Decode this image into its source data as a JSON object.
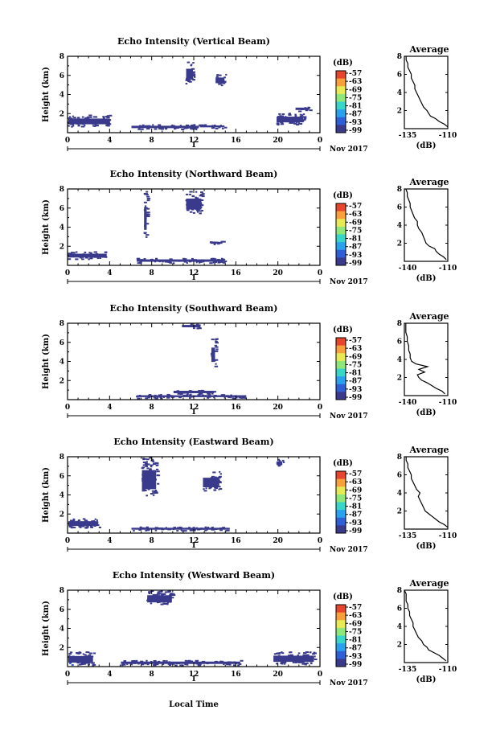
{
  "figure": {
    "xlabel": "Local Time",
    "date_label": "Nov 2017",
    "day_label": "1",
    "x_ticks": [
      "0",
      "4",
      "8",
      "12",
      "16",
      "20",
      "0"
    ],
    "y_ticks": [
      "2",
      "4",
      "6",
      "8"
    ],
    "colorbar_unit": "(dB)",
    "colorbar_ticks": [
      "-57",
      "-63",
      "-69",
      "-75",
      "-81",
      "-87",
      "-93",
      "-99"
    ],
    "colorbar_colors": [
      "#3a3a8c",
      "#2f5fd6",
      "#2aa1ee",
      "#37d6c8",
      "#8fe77a",
      "#e8ea55",
      "#f7a03c",
      "#e8452f"
    ]
  },
  "chart_data": [
    {
      "type": "heatmap",
      "title": "Echo Intensity (Vertical Beam)",
      "ylabel": "Height (km)",
      "xlim": [
        0,
        24
      ],
      "ylim": [
        0,
        8
      ],
      "echo_regions": [
        {
          "x": [
            0.0,
            4.1
          ],
          "y": [
            0.7,
            1.9
          ],
          "level_dB": -99
        },
        {
          "x": [
            6.0,
            12.5
          ],
          "y": [
            0.4,
            0.9
          ],
          "level_dB": -99
        },
        {
          "x": [
            12.5,
            15.0
          ],
          "y": [
            0.5,
            0.9
          ],
          "level_dB": -99
        },
        {
          "x": [
            11.2,
            12.0
          ],
          "y": [
            5.2,
            7.5
          ],
          "level_dB": -99
        },
        {
          "x": [
            14.0,
            15.0
          ],
          "y": [
            5.0,
            6.2
          ],
          "level_dB": -99
        },
        {
          "x": [
            19.8,
            22.5
          ],
          "y": [
            0.9,
            2.1
          ],
          "level_dB": -99
        },
        {
          "x": [
            21.6,
            23.0
          ],
          "y": [
            2.3,
            2.8
          ],
          "level_dB": -99
        }
      ],
      "profile": {
        "title": "Average",
        "xlabel": "(dB)",
        "xlim": [
          -135,
          -110
        ],
        "x_ticks": [
          "-135",
          "-110"
        ],
        "ylim": [
          0,
          8
        ],
        "height_km": [
          0.2,
          0.5,
          0.8,
          1.1,
          1.4,
          1.7,
          2.0,
          2.4,
          2.8,
          3.2,
          3.6,
          4.0,
          4.4,
          4.8,
          5.2,
          5.6,
          6.0,
          6.4,
          6.8,
          7.2,
          7.6,
          8.0
        ],
        "dB": [
          -110,
          -112,
          -115,
          -117,
          -120,
          -121,
          -122,
          -124,
          -125,
          -126,
          -127,
          -128,
          -129,
          -129,
          -130,
          -131,
          -131,
          -132,
          -133,
          -133,
          -134,
          -134
        ]
      }
    },
    {
      "type": "heatmap",
      "title": "Echo Intensity (Northward Beam)",
      "ylabel": "Height (km)",
      "xlim": [
        0,
        24
      ],
      "ylim": [
        0,
        8
      ],
      "echo_regions": [
        {
          "x": [
            0.0,
            3.8
          ],
          "y": [
            0.7,
            1.5
          ],
          "level_dB": -99
        },
        {
          "x": [
            6.5,
            15.0
          ],
          "y": [
            0.3,
            0.8
          ],
          "level_dB": -99
        },
        {
          "x": [
            7.2,
            7.6
          ],
          "y": [
            3.0,
            7.8
          ],
          "level_dB": -99
        },
        {
          "x": [
            11.2,
            12.8
          ],
          "y": [
            5.5,
            7.8
          ],
          "level_dB": -99
        },
        {
          "x": [
            13.5,
            14.8
          ],
          "y": [
            2.2,
            2.6
          ],
          "level_dB": -99
        }
      ],
      "profile": {
        "title": "Average",
        "xlabel": "(dB)",
        "xlim": [
          -140,
          -110
        ],
        "x_ticks": [
          "-140",
          "-110"
        ],
        "ylim": [
          0,
          8
        ],
        "height_km": [
          0.2,
          0.5,
          0.8,
          1.1,
          1.4,
          1.7,
          2.0,
          2.4,
          2.8,
          3.2,
          3.6,
          4.0,
          4.4,
          4.8,
          5.2,
          5.6,
          6.0,
          6.4,
          6.8,
          7.2,
          7.6,
          8.0
        ],
        "dB": [
          -111,
          -113,
          -116,
          -118,
          -119,
          -123,
          -125,
          -126,
          -127,
          -128,
          -130,
          -131,
          -131,
          -133,
          -134,
          -135,
          -136,
          -136,
          -137,
          -138,
          -138,
          -139
        ]
      }
    },
    {
      "type": "heatmap",
      "title": "Echo Intensity (Southward Beam)",
      "ylabel": "Height (km)",
      "xlim": [
        0,
        24
      ],
      "ylim": [
        0,
        8
      ],
      "echo_regions": [
        {
          "x": [
            6.5,
            17.0
          ],
          "y": [
            0.2,
            0.6
          ],
          "level_dB": -99
        },
        {
          "x": [
            10.0,
            14.0
          ],
          "y": [
            0.6,
            1.1
          ],
          "level_dB": -99
        },
        {
          "x": [
            10.8,
            12.5
          ],
          "y": [
            7.5,
            8.0
          ],
          "level_dB": -99
        },
        {
          "x": [
            13.6,
            14.1
          ],
          "y": [
            3.5,
            6.5
          ],
          "level_dB": -99
        }
      ],
      "profile": {
        "title": "Average",
        "xlabel": "(dB)",
        "xlim": [
          -140,
          -110
        ],
        "x_ticks": [
          "-140",
          "-110"
        ],
        "ylim": [
          0,
          8
        ],
        "height_km": [
          0.2,
          0.5,
          0.8,
          1.1,
          1.4,
          1.7,
          2.0,
          2.3,
          2.6,
          2.9,
          3.2,
          3.5,
          3.8,
          4.2,
          4.6,
          5.0,
          5.5,
          6.0,
          6.5,
          7.0,
          7.5,
          8.0
        ],
        "dB": [
          -112,
          -114,
          -118,
          -121,
          -124,
          -128,
          -130,
          -131,
          -126,
          -130,
          -124,
          -132,
          -135,
          -136,
          -136,
          -137,
          -137,
          -138,
          -138,
          -139,
          -139,
          -139
        ]
      }
    },
    {
      "type": "heatmap",
      "title": "Echo Intensity (Eastward Beam)",
      "ylabel": "Height (km)",
      "xlim": [
        0,
        24
      ],
      "ylim": [
        0,
        8
      ],
      "echo_regions": [
        {
          "x": [
            0.0,
            3.0
          ],
          "y": [
            0.6,
            1.6
          ],
          "level_dB": -99
        },
        {
          "x": [
            6.0,
            15.5
          ],
          "y": [
            0.3,
            0.7
          ],
          "level_dB": -99
        },
        {
          "x": [
            7.0,
            8.5
          ],
          "y": [
            4.0,
            8.0
          ],
          "level_dB": -99
        },
        {
          "x": [
            12.8,
            14.5
          ],
          "y": [
            4.5,
            6.5
          ],
          "level_dB": -99
        },
        {
          "x": [
            19.8,
            20.5
          ],
          "y": [
            7.0,
            7.8
          ],
          "level_dB": -99
        }
      ],
      "profile": {
        "title": "Average",
        "xlabel": "(dB)",
        "xlim": [
          -135,
          -110
        ],
        "x_ticks": [
          "-135",
          "-110"
        ],
        "ylim": [
          0,
          8
        ],
        "height_km": [
          0.2,
          0.5,
          0.8,
          1.1,
          1.4,
          1.7,
          2.0,
          2.4,
          2.8,
          3.2,
          3.6,
          4.0,
          4.4,
          4.8,
          5.2,
          5.6,
          6.0,
          6.4,
          6.8,
          7.2,
          7.6,
          8.0
        ],
        "dB": [
          -110,
          -112,
          -115,
          -117,
          -119,
          -121,
          -123,
          -124,
          -125,
          -126,
          -127,
          -126,
          -128,
          -129,
          -130,
          -131,
          -131,
          -132,
          -133,
          -133,
          -134,
          -134
        ]
      }
    },
    {
      "type": "heatmap",
      "title": "Echo Intensity (Westward Beam)",
      "ylabel": "Height (km)",
      "xlim": [
        0,
        24
      ],
      "ylim": [
        0,
        8
      ],
      "echo_regions": [
        {
          "x": [
            0.0,
            2.5
          ],
          "y": [
            0.2,
            1.6
          ],
          "level_dB": -99
        },
        {
          "x": [
            5.0,
            16.5
          ],
          "y": [
            0.2,
            0.7
          ],
          "level_dB": -99
        },
        {
          "x": [
            7.5,
            10.0
          ],
          "y": [
            6.5,
            8.0
          ],
          "level_dB": -99
        },
        {
          "x": [
            19.5,
            23.5
          ],
          "y": [
            0.3,
            1.6
          ],
          "level_dB": -99
        },
        {
          "x": [
            0.1,
            0.4
          ],
          "y": [
            0.2,
            0.5
          ],
          "level_dB": -93
        }
      ],
      "profile": {
        "title": "Average",
        "xlabel": "(dB)",
        "xlim": [
          -135,
          -110
        ],
        "x_ticks": [
          "-135",
          "-110"
        ],
        "ylim": [
          0,
          8
        ],
        "height_km": [
          0.2,
          0.5,
          0.8,
          1.1,
          1.4,
          1.7,
          2.0,
          2.4,
          2.8,
          3.2,
          3.6,
          4.0,
          4.4,
          4.8,
          5.2,
          5.6,
          6.0,
          6.4,
          6.8,
          7.2,
          7.6,
          8.0
        ],
        "dB": [
          -111,
          -113,
          -115,
          -118,
          -121,
          -122,
          -124,
          -125,
          -127,
          -128,
          -129,
          -130,
          -130,
          -131,
          -132,
          -132,
          -133,
          -133,
          -134,
          -134,
          -134,
          -135
        ]
      }
    }
  ]
}
